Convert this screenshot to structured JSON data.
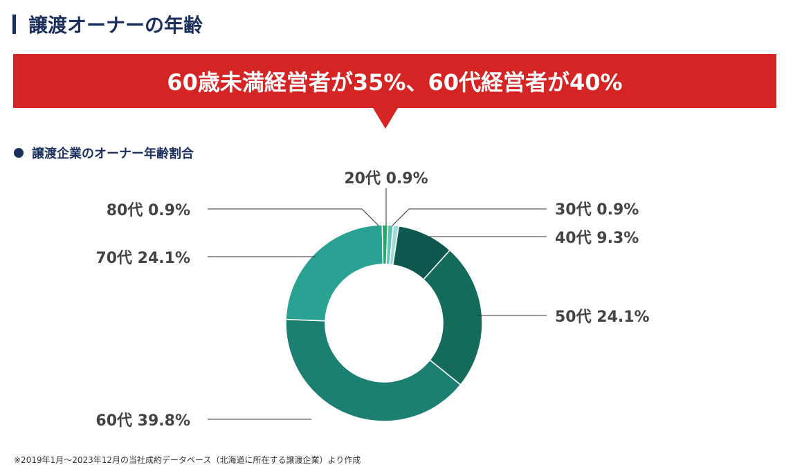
{
  "title": "譲渡オーナーの年齢",
  "banner": "60歳未満経営者が35%、60代経営者が40%",
  "subtitle": "譲渡企業のオーナー年齢割合",
  "footnote": "※2019年1月～2023年12月の当社成約データベース（北海道に所在する譲渡企業）より作成",
  "chart_data": {
    "type": "pie",
    "donut": true,
    "title": "譲渡企業のオーナー年齢割合",
    "categories": [
      "20代",
      "30代",
      "40代",
      "50代",
      "60代",
      "70代",
      "80代"
    ],
    "values": [
      0.9,
      0.9,
      9.3,
      24.1,
      39.8,
      24.1,
      0.9
    ],
    "labels": [
      "20代 0.9%",
      "30代 0.9%",
      "40代 9.3%",
      "50代 24.1%",
      "60代 39.8%",
      "70代 24.1%",
      "80代 0.9%"
    ],
    "colors": [
      "#5ec2b8",
      "#a2dad5",
      "#0f584f",
      "#156b5a",
      "#1b7f71",
      "#29a193",
      "#2fa66a"
    ]
  }
}
